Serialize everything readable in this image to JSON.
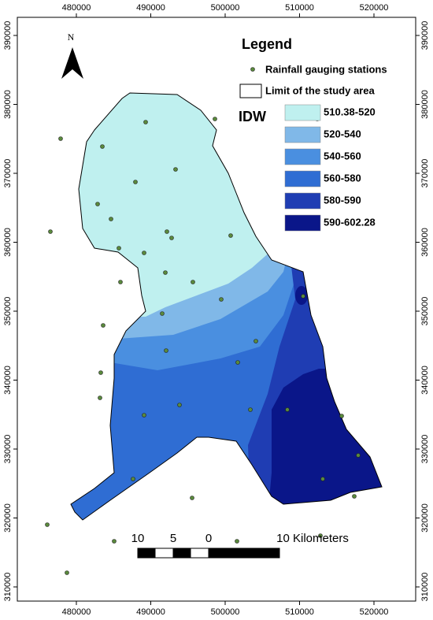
{
  "frame": {
    "xticks": [
      480000,
      490000,
      500000,
      510000,
      520000
    ],
    "yticks": [
      310000,
      320000,
      330000,
      340000,
      350000,
      360000,
      370000,
      380000,
      390000
    ]
  },
  "north": "N",
  "legend": {
    "title": "Legend",
    "stations": "Rainfall gauging stations",
    "limit": "Limit of the study area"
  },
  "idw": {
    "title": "IDW",
    "classes": [
      {
        "label": "510.38-520",
        "color": "#bff0ef"
      },
      {
        "label": "520-540",
        "color": "#80b8e8"
      },
      {
        "label": "540-560",
        "color": "#4a8fe0"
      },
      {
        "label": "560-580",
        "color": "#2f6dd3"
      },
      {
        "label": "580-590",
        "color": "#1f3db3"
      },
      {
        "label": "590-602.28",
        "color": "#0a1689"
      }
    ]
  },
  "scale_bar": {
    "labels": [
      "10",
      "5",
      "0",
      "10 Kilometers"
    ]
  }
}
